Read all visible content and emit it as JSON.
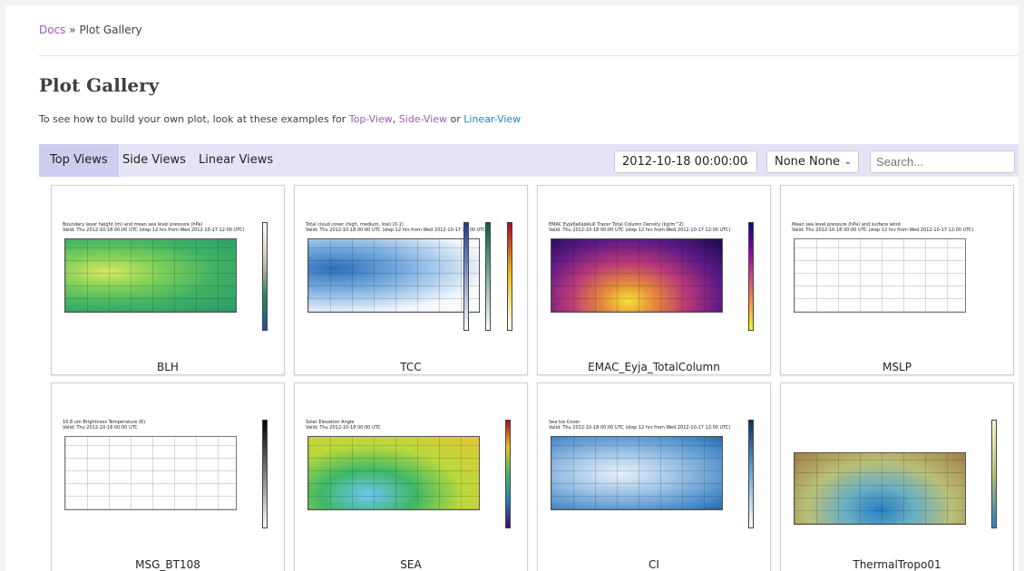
{
  "breadcrumb": {
    "root": "Docs",
    "separator": "»",
    "current": "Plot Gallery"
  },
  "page_title": "Plot Gallery",
  "intro": {
    "text_before": "To see how to build your own plot, look at these examples for ",
    "link1": "Top-View",
    "sep1": ", ",
    "link2": "Side-View",
    "sep2": " or ",
    "link3": "Linear-View"
  },
  "tabs": [
    {
      "label": "Top Views",
      "active": true
    },
    {
      "label": "Side Views",
      "active": false
    },
    {
      "label": "Linear Views",
      "active": false
    }
  ],
  "time_select": {
    "value": "2012-10-18 00:00:00"
  },
  "level_select": {
    "value": "None None"
  },
  "search": {
    "placeholder": "Search..."
  },
  "cards": [
    {
      "caption": "BLH",
      "title": "Boundary layer height (m) and mean sea level pressure (hPa)",
      "valid": "Valid: Thu 2012-10-18 00:00 UTC (step 12 hrs from Wed 2012-10-17 12:00 UTC)",
      "scheme": "green"
    },
    {
      "caption": "TCC",
      "title": "Total cloud cover (high, medium, low) (0-1)",
      "valid": "Valid: Thu 2012-10-18 00:00 UTC (step 12 hrs from Wed 2012-10-17 12:00 UTC)",
      "scheme": "cloud"
    },
    {
      "caption": "EMAC_Eyja_TotalColumn",
      "title": "EMAC Eyjafjallajokull Tracer Total Column Density (kg/m^2)",
      "valid": "Valid: Thu 2012-10-18 00:00 UTC (step 12 hrs from Wed 2012-10-17 12:00 UTC)",
      "scheme": "plasma"
    },
    {
      "caption": "MSLP",
      "title": "Mean sea level pressure (hPa) and surface wind",
      "valid": "Valid: Thu 2012-10-18 00:00 UTC (step 12 hrs from Wed 2012-10-17 12:00 UTC)",
      "scheme": "mslp"
    },
    {
      "caption": "MSG_BT108",
      "title": "10.8 um Brightness Temperature (K)",
      "valid": "Valid: Thu 2012-10-18 00:00 UTC",
      "scheme": "white"
    },
    {
      "caption": "SEA",
      "title": "Solar Elevation Angle",
      "valid": "Valid: Thu 2012-10-18 00:00 UTC",
      "scheme": "sea"
    },
    {
      "caption": "CI",
      "title": "Sea Ice Cover",
      "valid": "Valid: Thu 2012-10-18 00:00 UTC (step 12 hrs from Wed 2012-10-17 12:00 UTC)",
      "scheme": "ci"
    },
    {
      "caption": "ThermalTropo01",
      "title": "",
      "valid": "",
      "scheme": "tropo"
    }
  ]
}
